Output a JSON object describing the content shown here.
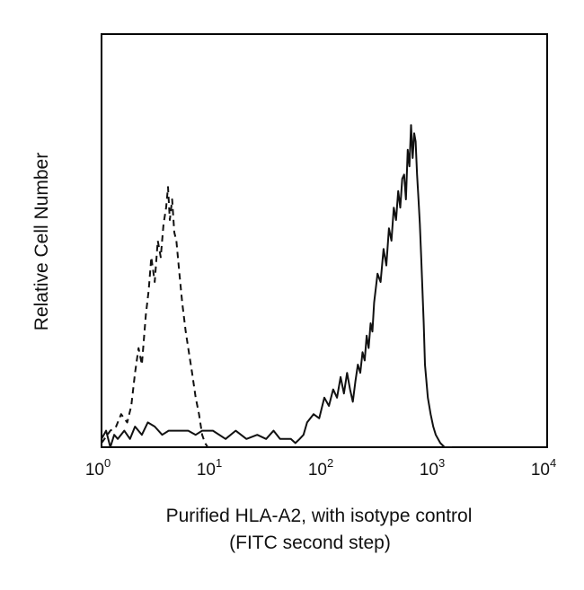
{
  "chart_data": {
    "type": "line",
    "title": "",
    "xlabel": "Purified HLA-A2, with isotype control",
    "xlabel_line2": "(FITC second step)",
    "ylabel": "Relative Cell Number",
    "x_scale": "log",
    "xlim": [
      1,
      10000
    ],
    "ylim": [
      0,
      100
    ],
    "x_ticks": [
      {
        "base": "10",
        "exp": "0",
        "value": 1
      },
      {
        "base": "10",
        "exp": "1",
        "value": 10
      },
      {
        "base": "10",
        "exp": "2",
        "value": 100
      },
      {
        "base": "10",
        "exp": "3",
        "value": 1000
      },
      {
        "base": "10",
        "exp": "4",
        "value": 10000
      }
    ],
    "grid": false,
    "legend": "none",
    "series": [
      {
        "style": "dashed",
        "color": "#111111",
        "x": [
          1.0,
          1.2,
          1.35,
          1.5,
          1.7,
          1.85,
          2.0,
          2.15,
          2.3,
          2.5,
          2.65,
          2.8,
          3.0,
          3.2,
          3.4,
          3.6,
          3.8,
          3.95,
          4.1,
          4.3,
          4.5,
          4.7,
          5.0,
          5.3,
          5.7,
          6.0,
          6.5,
          7.0,
          7.5,
          8.0,
          8.5,
          9.0
        ],
        "y": [
          1,
          4,
          5,
          8,
          6,
          10,
          18,
          24,
          20,
          32,
          38,
          46,
          40,
          50,
          46,
          54,
          58,
          63,
          55,
          60,
          52,
          50,
          42,
          35,
          28,
          24,
          18,
          12,
          8,
          3,
          1,
          0
        ]
      },
      {
        "style": "solid",
        "color": "#111111",
        "x": [
          1.0,
          1.1,
          1.2,
          1.3,
          1.4,
          1.6,
          1.8,
          2.0,
          2.3,
          2.6,
          3.0,
          3.5,
          4.0,
          5.0,
          6.0,
          7.0,
          8.0,
          10,
          13,
          16,
          20,
          25,
          30,
          35,
          40,
          45,
          50,
          55,
          60,
          65,
          70,
          80,
          90,
          100,
          110,
          120,
          130,
          140,
          150,
          160,
          170,
          180,
          190,
          200,
          210,
          220,
          230,
          240,
          250,
          260,
          270,
          280,
          300,
          320,
          340,
          360,
          380,
          400,
          420,
          440,
          460,
          480,
          500,
          520,
          540,
          560,
          580,
          600,
          620,
          640,
          660,
          680,
          700,
          720,
          740,
          760,
          780,
          800,
          850,
          900,
          950,
          1000,
          1100,
          1200,
          1300,
          1400
        ],
        "y": [
          2,
          4,
          0,
          3,
          2,
          4,
          2,
          5,
          3,
          6,
          5,
          3,
          4,
          4,
          4,
          3,
          4,
          4,
          2,
          4,
          2,
          3,
          2,
          4,
          2,
          2,
          2,
          1,
          2,
          3,
          6,
          8,
          7,
          12,
          10,
          14,
          12,
          17,
          13,
          18,
          14,
          11,
          16,
          20,
          18,
          23,
          21,
          27,
          24,
          30,
          28,
          35,
          42,
          40,
          48,
          44,
          53,
          50,
          58,
          55,
          62,
          58,
          65,
          66,
          60,
          72,
          68,
          78,
          70,
          76,
          74,
          66,
          60,
          54,
          46,
          38,
          30,
          20,
          12,
          8,
          5,
          3,
          1,
          0,
          0,
          0
        ]
      }
    ]
  }
}
